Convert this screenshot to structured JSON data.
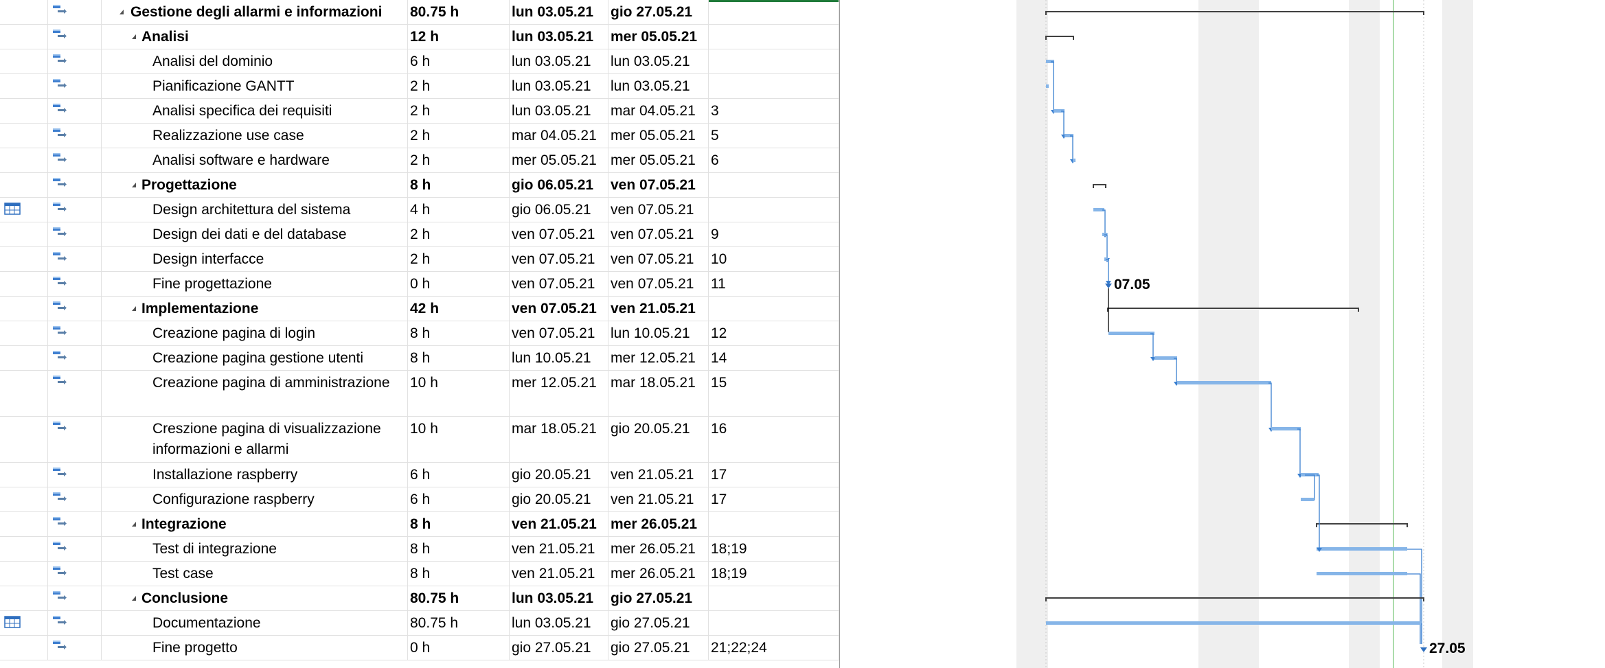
{
  "grid": {
    "rows": [
      {
        "type": "summary",
        "level": 0,
        "name": "Gestione degli allarmi e informazioni",
        "duration": "80.75 h",
        "start": "lun 03.05.21",
        "finish": "gio 27.05.21",
        "pred": "",
        "indicator": ""
      },
      {
        "type": "summary",
        "level": 1,
        "name": "Analisi",
        "duration": "12 h",
        "start": "lun 03.05.21",
        "finish": "mer 05.05.21",
        "pred": "",
        "indicator": ""
      },
      {
        "type": "task",
        "name": "Analisi del dominio",
        "duration": "6 h",
        "start": "lun 03.05.21",
        "finish": "lun 03.05.21",
        "pred": "",
        "indicator": ""
      },
      {
        "type": "task",
        "name": "Pianificazione GANTT",
        "duration": "2 h",
        "start": "lun 03.05.21",
        "finish": "lun 03.05.21",
        "pred": "",
        "indicator": ""
      },
      {
        "type": "task",
        "name": "Analisi specifica dei requisiti",
        "duration": "2 h",
        "start": "lun 03.05.21",
        "finish": "mar 04.05.21",
        "pred": "3",
        "indicator": ""
      },
      {
        "type": "task",
        "name": "Realizzazione use case",
        "duration": "2 h",
        "start": "mar 04.05.21",
        "finish": "mer 05.05.21",
        "pred": "5",
        "indicator": ""
      },
      {
        "type": "task",
        "name": "Analisi software e hardware",
        "duration": "2 h",
        "start": "mer 05.05.21",
        "finish": "mer 05.05.21",
        "pred": "6",
        "indicator": ""
      },
      {
        "type": "summary",
        "level": 1,
        "name": "Progettazione",
        "duration": "8 h",
        "start": "gio 06.05.21",
        "finish": "ven 07.05.21",
        "pred": "",
        "indicator": ""
      },
      {
        "type": "task",
        "name": "Design architettura del sistema",
        "duration": "4 h",
        "start": "gio 06.05.21",
        "finish": "ven 07.05.21",
        "pred": "",
        "indicator": "calendar"
      },
      {
        "type": "task",
        "name": "Design dei dati e del database",
        "duration": "2 h",
        "start": "ven 07.05.21",
        "finish": "ven 07.05.21",
        "pred": "9",
        "indicator": ""
      },
      {
        "type": "task",
        "name": "Design interfacce",
        "duration": "2 h",
        "start": "ven 07.05.21",
        "finish": "ven 07.05.21",
        "pred": "10",
        "indicator": ""
      },
      {
        "type": "task",
        "name": "Fine progettazione",
        "duration": "0 h",
        "start": "ven 07.05.21",
        "finish": "ven 07.05.21",
        "pred": "11",
        "indicator": ""
      },
      {
        "type": "summary",
        "level": 1,
        "name": "Implementazione",
        "duration": "42 h",
        "start": "ven 07.05.21",
        "finish": "ven 21.05.21",
        "pred": "",
        "indicator": ""
      },
      {
        "type": "task",
        "name": "Creazione pagina di login",
        "duration": "8 h",
        "start": "ven 07.05.21",
        "finish": "lun 10.05.21",
        "pred": "12",
        "indicator": ""
      },
      {
        "type": "task",
        "name": "Creazione pagina gestione utenti",
        "duration": "8 h",
        "start": "lun 10.05.21",
        "finish": "mer 12.05.21",
        "pred": "14",
        "indicator": ""
      },
      {
        "type": "task",
        "name": "Creazione pagina di amministrazione",
        "duration": "10 h",
        "start": "mer 12.05.21",
        "finish": "mar 18.05.21",
        "pred": "15",
        "indicator": ""
      },
      {
        "type": "task",
        "name": "Creszione pagina di visualizzazione informazioni e allarmi",
        "duration": "10 h",
        "start": "mar 18.05.21",
        "finish": "gio 20.05.21",
        "pred": "16",
        "indicator": ""
      },
      {
        "type": "task",
        "name": "Installazione raspberry",
        "duration": "6 h",
        "start": "gio 20.05.21",
        "finish": "ven 21.05.21",
        "pred": "17",
        "indicator": ""
      },
      {
        "type": "task",
        "name": "Configurazione raspberry",
        "duration": "6 h",
        "start": "gio 20.05.21",
        "finish": "ven 21.05.21",
        "pred": "17",
        "indicator": ""
      },
      {
        "type": "summary",
        "level": 1,
        "name": "Integrazione",
        "duration": "8 h",
        "start": "ven 21.05.21",
        "finish": "mer 26.05.21",
        "pred": "",
        "indicator": ""
      },
      {
        "type": "task",
        "name": "Test di integrazione",
        "duration": "8 h",
        "start": "ven 21.05.21",
        "finish": "mer 26.05.21",
        "pred": "18;19",
        "indicator": ""
      },
      {
        "type": "task",
        "name": "Test case",
        "duration": "8 h",
        "start": "ven 21.05.21",
        "finish": "mer 26.05.21",
        "pred": "18;19",
        "indicator": ""
      },
      {
        "type": "summary",
        "level": 1,
        "name": "Conclusione",
        "duration": "80.75 h",
        "start": "lun 03.05.21",
        "finish": "gio 27.05.21",
        "pred": "",
        "indicator": ""
      },
      {
        "type": "task",
        "name": "Documentazione",
        "duration": "80.75 h",
        "start": "lun 03.05.21",
        "finish": "gio 27.05.21",
        "pred": "",
        "indicator": "calendar"
      },
      {
        "type": "task",
        "name": "Fine progetto",
        "duration": "0 h",
        "start": "gio 27.05.21",
        "finish": "gio 27.05.21",
        "pred": "21;22;24",
        "indicator": ""
      }
    ]
  },
  "gantt": {
    "milestones": [
      {
        "label": "07.05"
      },
      {
        "label": "27.05"
      }
    ],
    "colors": {
      "task_bar": "#86b5e8",
      "summary_bar": "#404040",
      "link": "#3a7fd0",
      "weekend_shade": "#efefef",
      "today_line": "#8fd08f"
    }
  }
}
